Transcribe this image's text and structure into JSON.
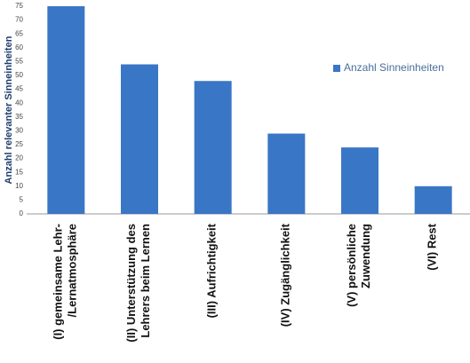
{
  "chart_data": {
    "type": "bar",
    "ylabel": "Anzahl relevanter Sinneinheiten",
    "categories": [
      "(I) gemeinsame Lehr-\n/Lernatmosphäre",
      "(II) Unterstützung des\nLehrers beim Lernen",
      "(III) Aufrichtigkeit",
      "(IV) Zugänglichkeit",
      "(V) persönliche\nZuwendung",
      "(VI) Rest"
    ],
    "series": [
      {
        "name": "Anzahl Sinneinheiten",
        "color": "#3a76c6",
        "values": [
          75,
          54,
          48,
          29,
          24,
          10
        ]
      }
    ],
    "ylim": [
      0,
      75
    ],
    "yticks": [
      0,
      5,
      10,
      15,
      20,
      25,
      30,
      35,
      40,
      45,
      50,
      55,
      60,
      65,
      70,
      75
    ],
    "grid": false,
    "legend": "right"
  }
}
